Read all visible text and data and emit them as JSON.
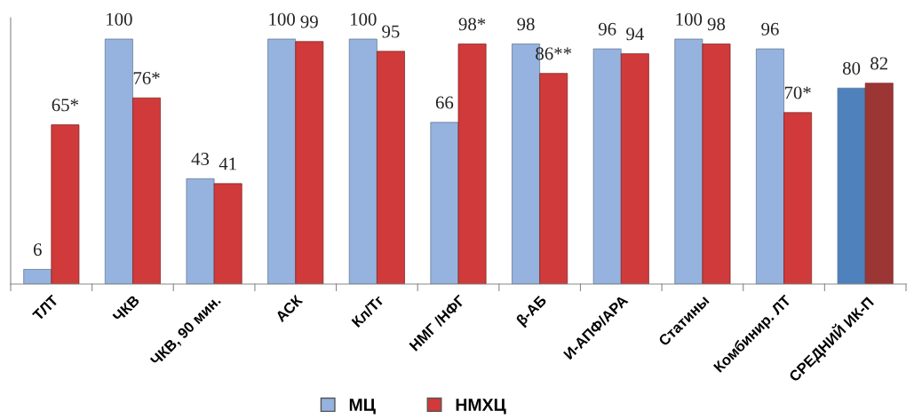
{
  "chart_data": {
    "type": "bar",
    "categories": [
      "ТЛТ",
      "ЧКВ",
      "ЧКВ, 90 мин.",
      "АСК",
      "Кл/Тг",
      "НМГ /НФГ",
      "β-АБ",
      "И-АПФ/АРА",
      "Статины",
      "Комбинир. ЛТ",
      "СРЕДНИЙ ИК-П"
    ],
    "series": [
      {
        "name": "МЦ",
        "color": "#95b3de",
        "colors": [
          "#95b3de",
          "#95b3de",
          "#95b3de",
          "#95b3de",
          "#95b3de",
          "#95b3de",
          "#95b3de",
          "#95b3de",
          "#95b3de",
          "#95b3de",
          "#4f81bd"
        ],
        "values": [
          6,
          100,
          43,
          100,
          100,
          66,
          98,
          96,
          100,
          96,
          80
        ],
        "value_labels": [
          "6",
          "100",
          "43",
          "100",
          "100",
          "66",
          "98",
          "96",
          "100",
          "96",
          "80"
        ]
      },
      {
        "name": "НМХЦ",
        "color": "#d03a3a",
        "colors": [
          "#d03a3a",
          "#d03a3a",
          "#d03a3a",
          "#d03a3a",
          "#d03a3a",
          "#d03a3a",
          "#d03a3a",
          "#d03a3a",
          "#d03a3a",
          "#d03a3a",
          "#9b3634"
        ],
        "values": [
          65,
          76,
          41,
          99,
          95,
          98,
          86,
          94,
          98,
          70,
          82
        ],
        "value_labels": [
          "65*",
          "76*",
          "41",
          "99",
          "95",
          "98*",
          "86**",
          "94",
          "98",
          "70*",
          "82"
        ]
      }
    ],
    "tick_labels": "x",
    "grid": false,
    "legend": "bottom"
  }
}
